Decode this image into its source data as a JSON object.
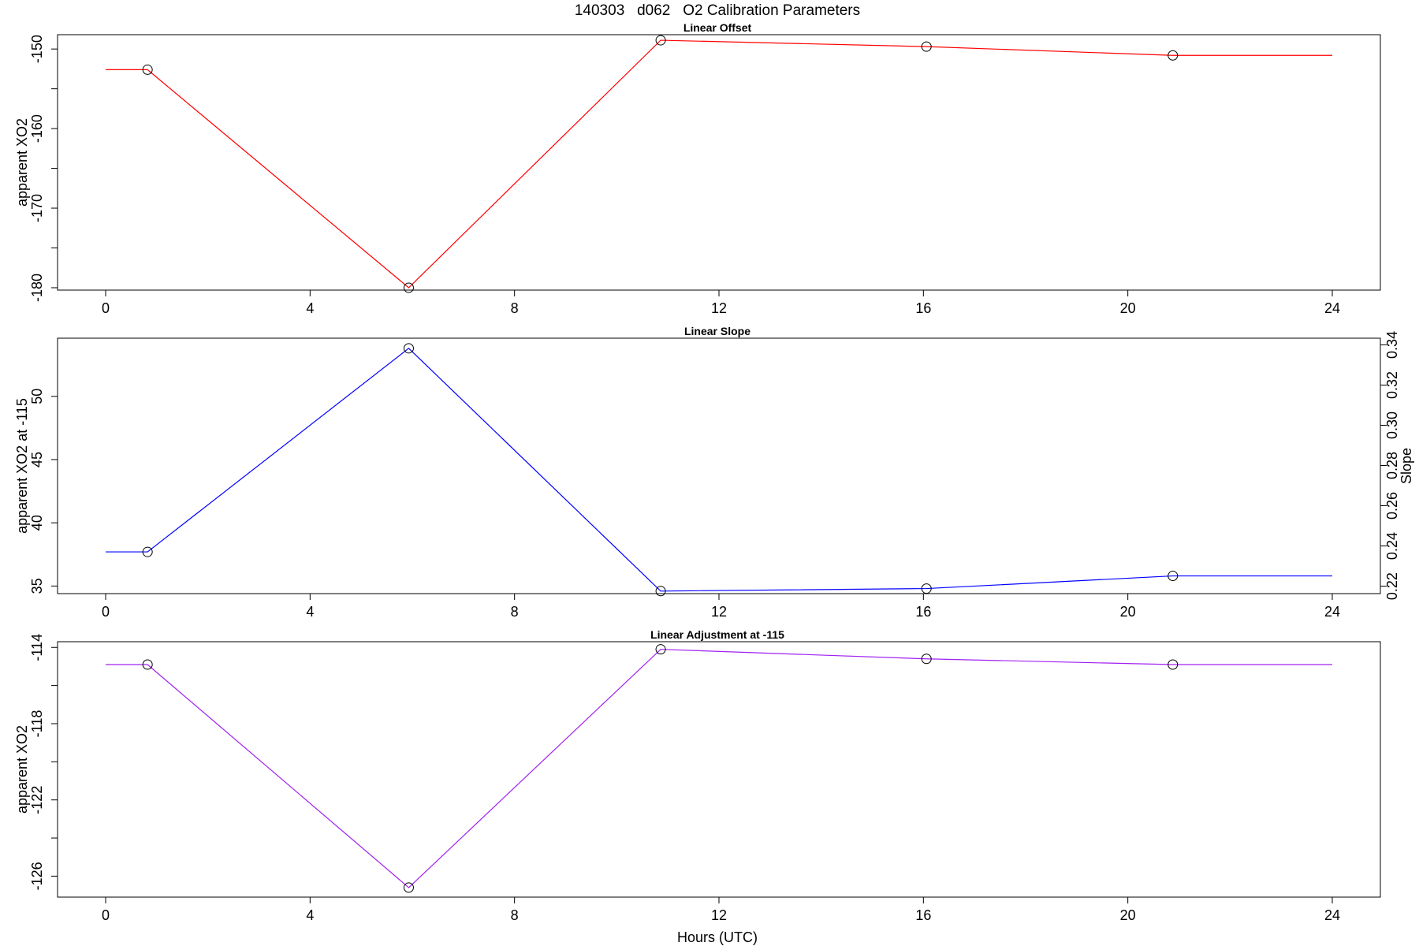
{
  "figure_title": "140303   d062   O2 Calibration Parameters",
  "x_axis_label": "Hours (UTC)",
  "chart_data": [
    {
      "type": "line",
      "title": "Linear Offset",
      "xlabel": "",
      "ylabel": "apparent XO2",
      "xlim": [
        0,
        24
      ],
      "ylim": [
        -180.3,
        -148.2
      ],
      "x_ticks": [
        0,
        4,
        8,
        12,
        16,
        20,
        24
      ],
      "y_ticks": [
        -180,
        -170,
        -160,
        -150
      ],
      "y_minor_ticks": [
        -175,
        -165,
        -155
      ],
      "line_color": "#ff0000",
      "marker": "open-circle",
      "line_x": [
        0,
        0.82,
        5.93,
        10.86,
        16.06,
        20.88,
        24
      ],
      "line_y": [
        -152.6,
        -152.6,
        -180.0,
        -148.9,
        -149.7,
        -150.8,
        -150.8
      ],
      "points_x": [
        0.82,
        5.93,
        10.86,
        16.06,
        20.88
      ],
      "points_y": [
        -152.6,
        -180.0,
        -148.9,
        -149.7,
        -150.8
      ]
    },
    {
      "type": "line",
      "title": "Linear Slope",
      "xlabel": "",
      "ylabel": "apparent XO2 at -115",
      "right_ylabel": "Slope",
      "xlim": [
        0,
        24
      ],
      "ylim": [
        34.4,
        54.6
      ],
      "x_ticks": [
        0,
        4,
        8,
        12,
        16,
        20,
        24
      ],
      "y_ticks": [
        35,
        40,
        45,
        50
      ],
      "right_ylim": [
        0.2163,
        0.3433
      ],
      "right_y_ticks": [
        0.22,
        0.24,
        0.26,
        0.28,
        0.3,
        0.32,
        0.34
      ],
      "line_color": "#0000ff",
      "marker": "open-circle",
      "line_x": [
        0,
        0.82,
        5.93,
        10.86,
        16.06,
        20.88,
        24
      ],
      "line_y": [
        37.7,
        37.7,
        53.8,
        34.6,
        34.8,
        35.8,
        35.8
      ],
      "points_x": [
        0.82,
        5.93,
        10.86,
        16.06,
        20.88
      ],
      "points_y": [
        37.7,
        53.8,
        34.6,
        34.8,
        35.8
      ]
    },
    {
      "type": "line",
      "title": "Linear Adjustment at -115",
      "xlabel": "Hours (UTC)",
      "ylabel": "apparent XO2",
      "xlim": [
        0,
        24
      ],
      "ylim": [
        -127.1,
        -113.7
      ],
      "x_ticks": [
        0,
        4,
        8,
        12,
        16,
        20,
        24
      ],
      "y_ticks": [
        -126,
        -122,
        -118,
        -114
      ],
      "y_minor_ticks": [
        -124,
        -120,
        -116
      ],
      "line_color": "#a020f0",
      "marker": "open-circle",
      "line_x": [
        0,
        0.82,
        5.93,
        10.86,
        16.06,
        20.88,
        24
      ],
      "line_y": [
        -114.9,
        -114.9,
        -126.6,
        -114.1,
        -114.6,
        -114.9,
        -114.9
      ],
      "points_x": [
        0.82,
        5.93,
        10.86,
        16.06,
        20.88
      ],
      "points_y": [
        -114.9,
        -126.6,
        -114.1,
        -114.6,
        -114.9
      ]
    }
  ]
}
